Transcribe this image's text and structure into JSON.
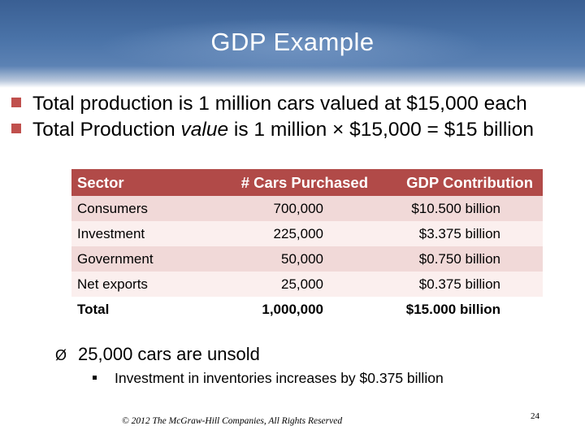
{
  "slide": {
    "title": "GDP Example",
    "bullets": [
      {
        "text": "Total production is 1 million cars valued at $15,000 each"
      },
      {
        "before": "Total Production ",
        "italic": "value",
        "after": " is 1 million × $15,000 = $15 billion"
      }
    ],
    "bullet_color": "#c0504d"
  },
  "table": {
    "headers": [
      "Sector",
      "# Cars Purchased",
      "GDP Contribution"
    ],
    "rows": [
      [
        "Consumers",
        "700,000",
        "$10.500 billion"
      ],
      [
        "Investment",
        "225,000",
        "$3.375 billion"
      ],
      [
        "Government",
        "50,000",
        "$0.750 billion"
      ],
      [
        "Net exports",
        "25,000",
        "$0.375 billion"
      ]
    ],
    "total": [
      "Total",
      "1,000,000",
      "$15.000 billion"
    ],
    "header_color": "#b14a48"
  },
  "note": {
    "arrow": "Ø",
    "text": "25,000 cars are unsold",
    "sub": "Investment in inventories increases by $0.375 billion"
  },
  "footer": {
    "copyright": "© 2012 The McGraw-Hill Companies, All Rights Reserved",
    "page": "24"
  }
}
